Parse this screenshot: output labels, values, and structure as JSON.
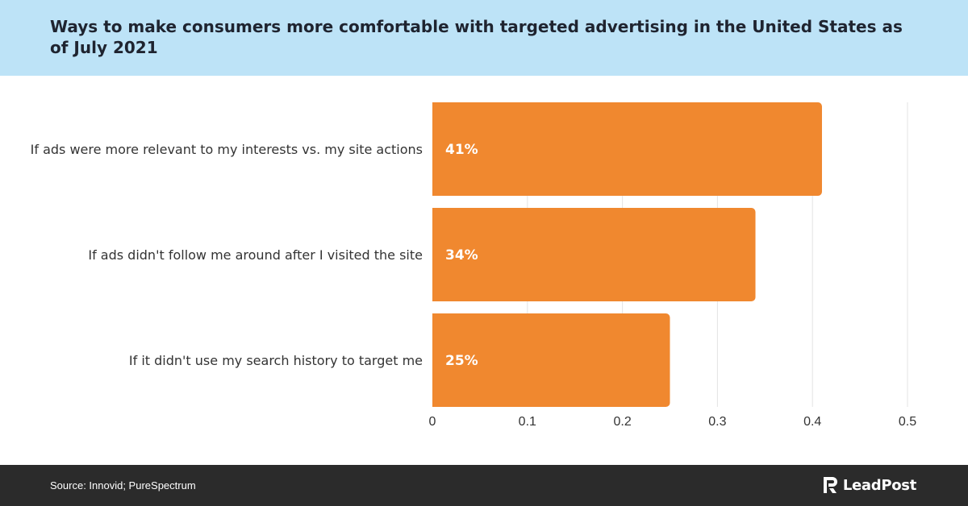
{
  "header": {
    "title": "Ways to make consumers more comfortable with targeted advertising in the United States as of July 2021"
  },
  "footer": {
    "source": "Source: Innovid; PureSpectrum",
    "brand": "LeadPost"
  },
  "colors": {
    "header_bg": "#bde3f7",
    "bar": "#f0882f",
    "footer_bg": "#2b2b2b"
  },
  "chart_data": {
    "type": "bar",
    "orientation": "horizontal",
    "categories": [
      "If ads were more relevant to my interests vs. my site actions",
      "If ads didn't follow me around after I visited the site",
      "If it didn't use my search history to target me"
    ],
    "values": [
      0.41,
      0.34,
      0.25
    ],
    "data_labels": [
      "41%",
      "34%",
      "25%"
    ],
    "xlim": [
      0,
      0.5
    ],
    "xticks": [
      0,
      0.1,
      0.2,
      0.3,
      0.4,
      0.5
    ],
    "xtick_labels": [
      "0",
      "0.1",
      "0.2",
      "0.3",
      "0.4",
      "0.5"
    ],
    "grid": true,
    "legend": "none"
  }
}
